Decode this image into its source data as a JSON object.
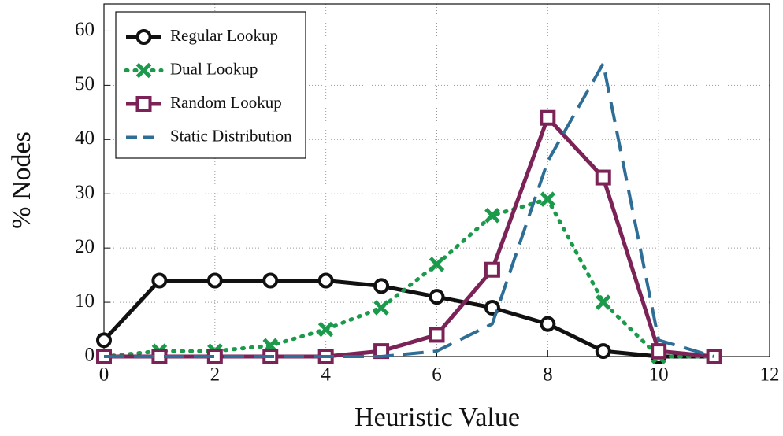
{
  "chart_data": {
    "type": "line",
    "xlabel": "Heuristic Value",
    "ylabel": "% Nodes",
    "x": [
      0,
      1,
      2,
      3,
      4,
      5,
      6,
      7,
      8,
      9,
      10,
      11
    ],
    "series": [
      {
        "name": "Regular Lookup",
        "color": "#111111",
        "marker": "circle",
        "dash": "solid",
        "values": [
          3,
          14,
          14,
          14,
          14,
          13,
          11,
          9,
          6,
          1,
          0,
          0
        ]
      },
      {
        "name": "Dual Lookup",
        "color": "#1a9a4a",
        "marker": "x",
        "dash": "dotted",
        "values": [
          0,
          1,
          1,
          2,
          5,
          9,
          17,
          26,
          29,
          10,
          0,
          0
        ]
      },
      {
        "name": "Random Lookup",
        "color": "#7b2357",
        "marker": "square",
        "dash": "solid",
        "values": [
          0,
          0,
          0,
          0,
          0,
          1,
          4,
          16,
          44,
          33,
          1,
          0
        ]
      },
      {
        "name": "Static Distribution",
        "color": "#2e6e96",
        "marker": "none",
        "dash": "dashed",
        "values": [
          0,
          0,
          0,
          0,
          0,
          0,
          1,
          6,
          36,
          54,
          3,
          0
        ]
      }
    ],
    "xlim": [
      0,
      12
    ],
    "xticks": [
      0,
      2,
      4,
      6,
      8,
      10,
      12
    ],
    "ylim": [
      0,
      65
    ],
    "yticks": [
      0,
      10,
      20,
      30,
      40,
      50,
      60
    ],
    "grid": true,
    "legend": "upper left"
  }
}
